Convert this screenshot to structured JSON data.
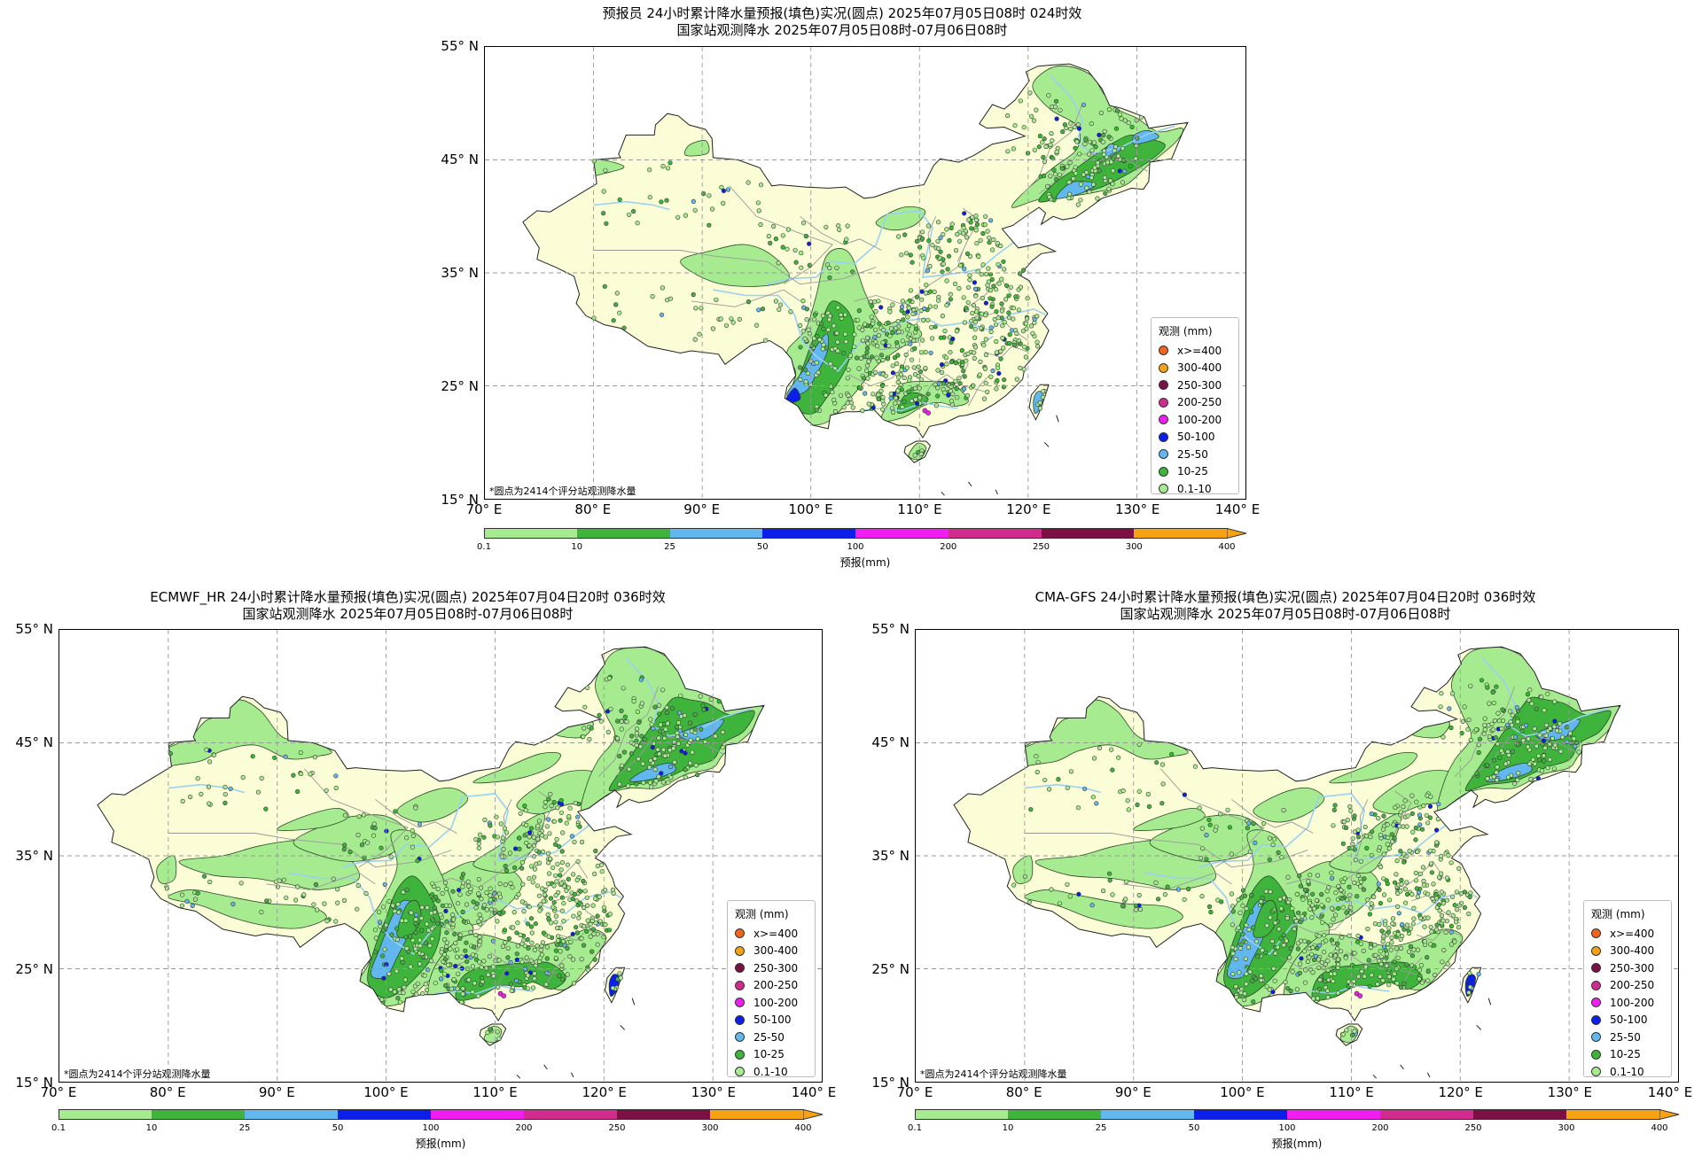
{
  "colors": {
    "bg_land": "#fbfdd6",
    "rain_01_10": "#a6eb8f",
    "rain_10_25": "#3fb43d",
    "rain_25_50": "#62b8ee",
    "rain_50_100": "#0c1ee9",
    "rain_100_200": "#f01ef0",
    "rain_200_250": "#d02c8e",
    "rain_250_300": "#7c1045",
    "rain_300_400": "#f7a212",
    "rain_400": "#f0641e",
    "river": "#9ad0f3",
    "border": "#999999"
  },
  "axes": {
    "lat_labels": [
      "55° N",
      "45° N",
      "35° N",
      "25° N",
      "15° N"
    ],
    "lon_labels": [
      "70° E",
      "80° E",
      "90° E",
      "100° E",
      "110° E",
      "120° E",
      "130° E",
      "140° E"
    ],
    "lat_range": [
      15,
      55
    ],
    "lon_range": [
      70,
      140
    ]
  },
  "panels": [
    {
      "id": "forecaster",
      "title_line1": "预报员 24小时累计降水量预报(填色)实况(圆点) 2025年07月05日08时 024时效",
      "title_line2": "国家站观测降水 2025年07月05日08时-07月06日08时",
      "note": "*圆点为2414个评分站观测降水量",
      "intensity": "low"
    },
    {
      "id": "ecmwf",
      "title_line1": "ECMWF_HR 24小时累计降水量预报(填色)实况(圆点) 2025年07月04日20时 036时效",
      "title_line2": "国家站观测降水 2025年07月05日08时-07月06日08时",
      "note": "*圆点为2414个评分站观测降水量",
      "intensity": "high"
    },
    {
      "id": "cmagfs",
      "title_line1": "CMA-GFS 24小时累计降水量预报(填色)实况(圆点) 2025年07月04日20时 036时效",
      "title_line2": "国家站观测降水 2025年07月05日08时-07月06日08时",
      "note": "*圆点为2414个评分站观测降水量",
      "intensity": "high"
    }
  ],
  "legend": {
    "title": "观测 (mm)",
    "items": [
      {
        "label": "x>=400",
        "color": "#f0641e"
      },
      {
        "label": "300-400",
        "color": "#f7a212"
      },
      {
        "label": "250-300",
        "color": "#7c1045"
      },
      {
        "label": "200-250",
        "color": "#d02c8e"
      },
      {
        "label": "100-200",
        "color": "#f01ef0"
      },
      {
        "label": "50-100",
        "color": "#0c1ee9"
      },
      {
        "label": "25-50",
        "color": "#62b8ee"
      },
      {
        "label": "10-25",
        "color": "#3fb43d"
      },
      {
        "label": "0.1-10",
        "color": "#a6eb8f"
      }
    ]
  },
  "colorbar": {
    "label": "预报(mm)",
    "ticks": [
      "0.1",
      "10",
      "25",
      "50",
      "100",
      "200",
      "250",
      "300",
      "400"
    ],
    "colors": [
      "#a6eb8f",
      "#3fb43d",
      "#62b8ee",
      "#0c1ee9",
      "#f01ef0",
      "#d02c8e",
      "#7c1045",
      "#f7a212"
    ]
  }
}
